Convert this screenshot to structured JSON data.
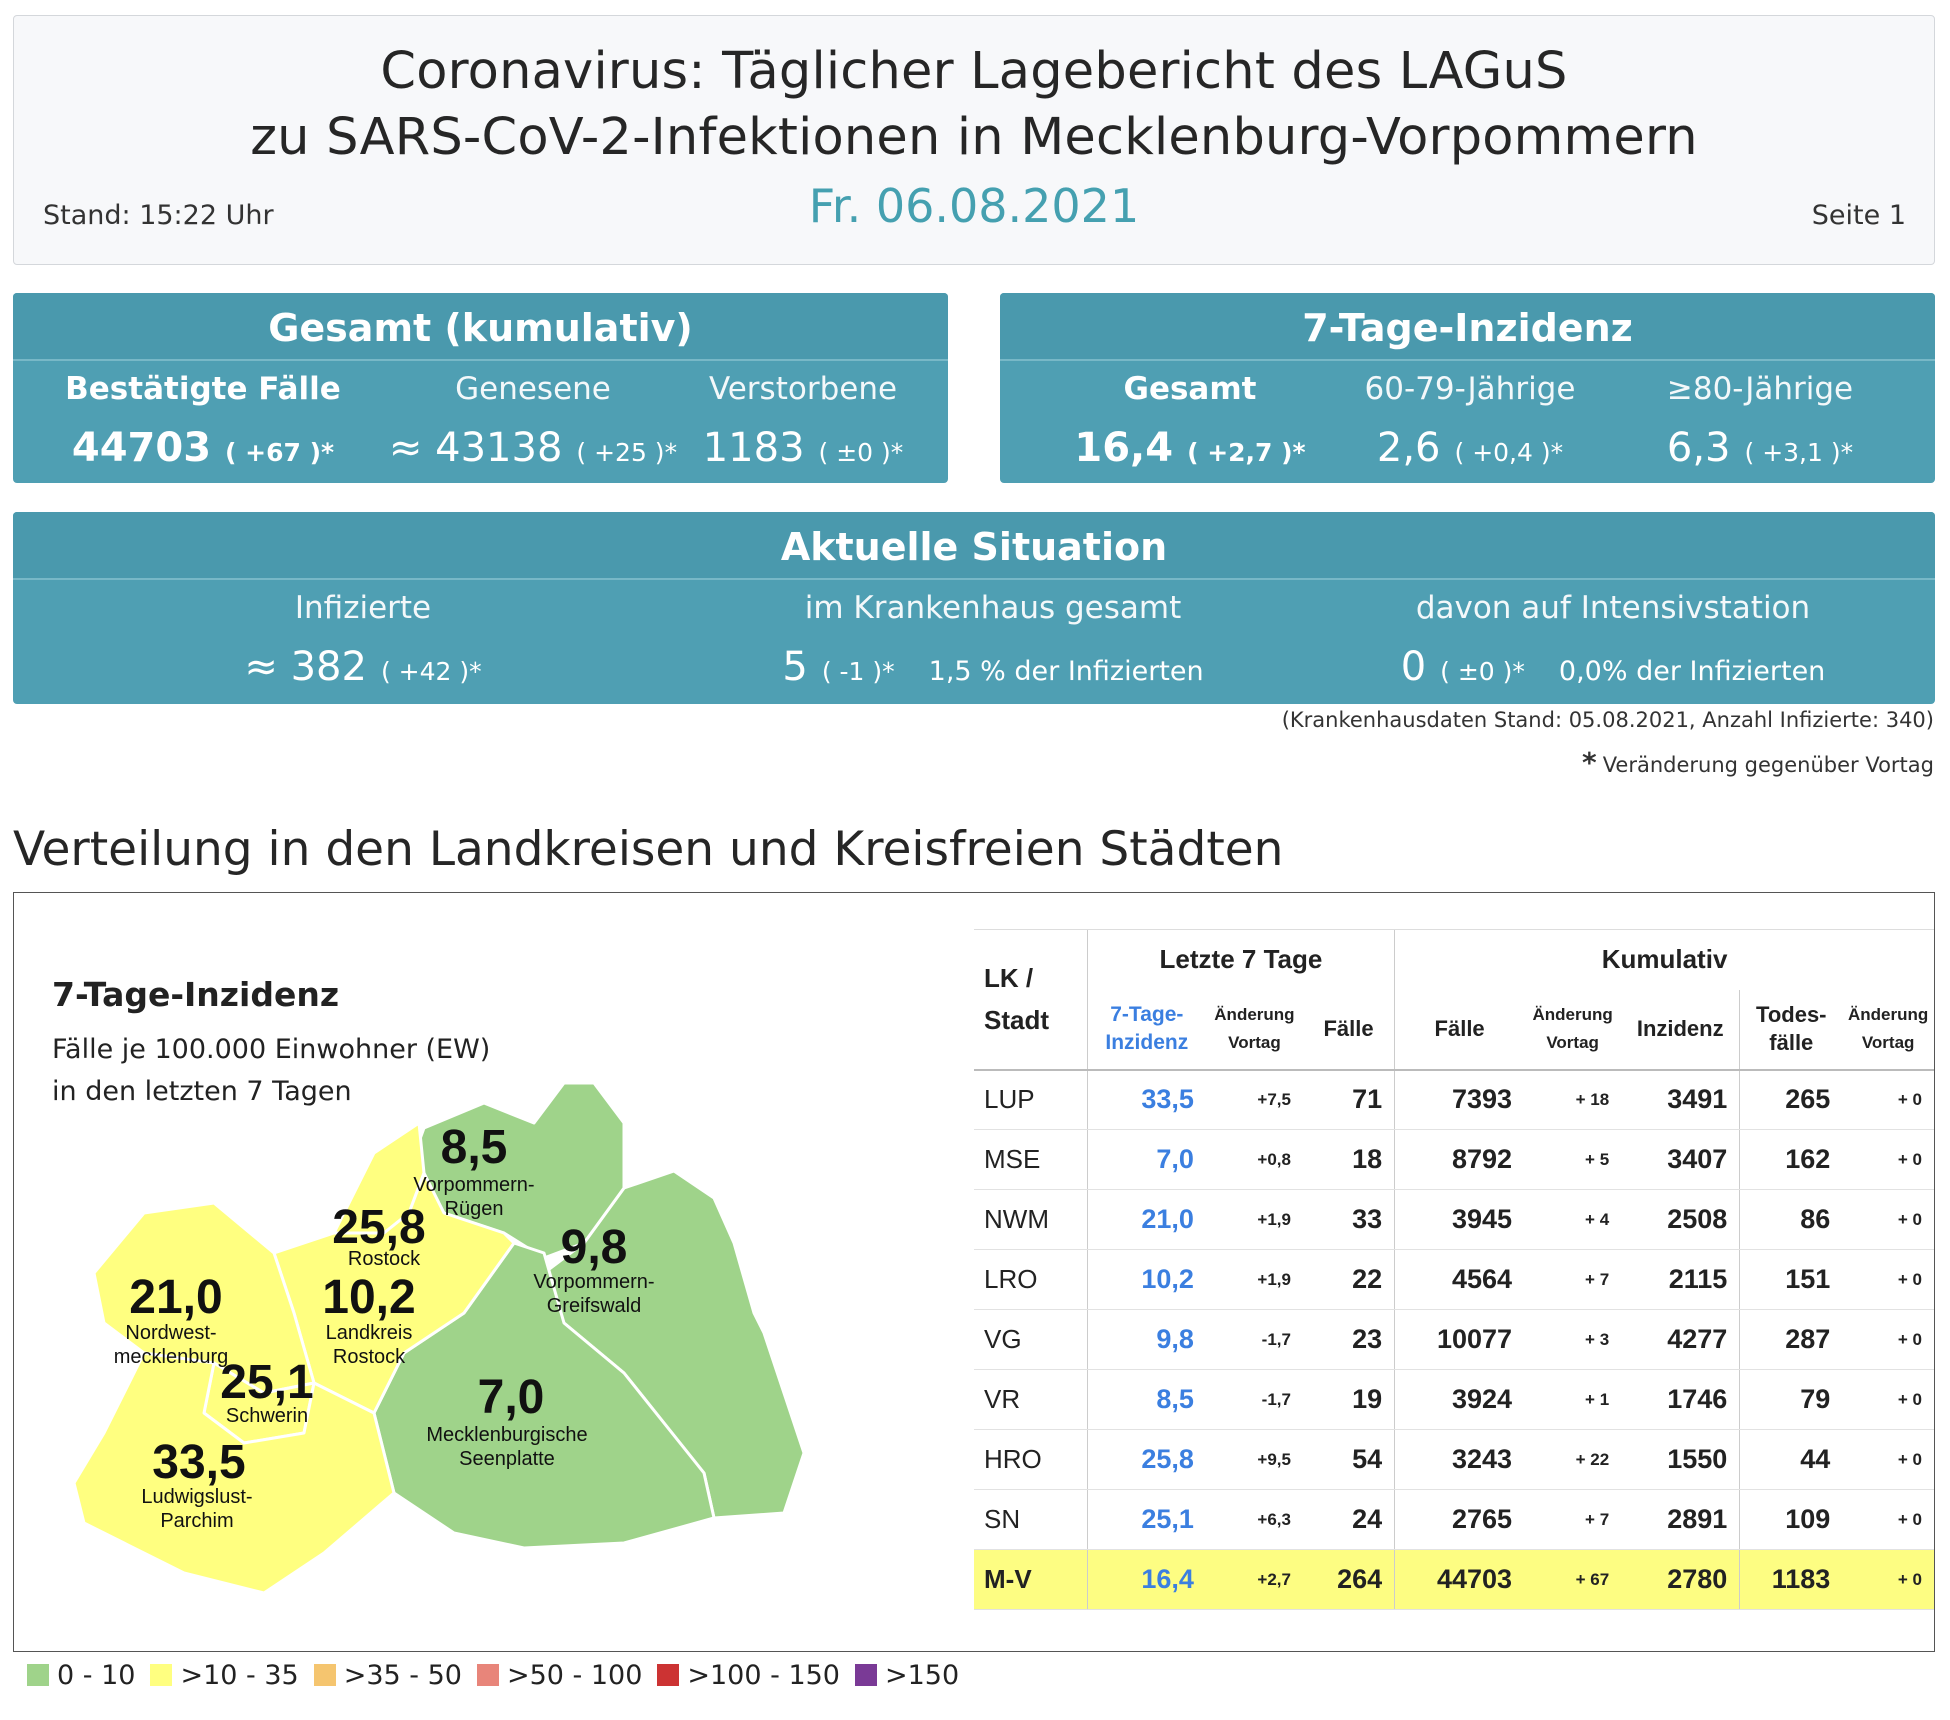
{
  "header": {
    "title_line1": "Coronavirus: Täglicher Lagebericht des LAGuS",
    "title_line2": "zu SARS-CoV-2-Infektionen in Mecklenburg-Vorpommern",
    "stand": "Stand: 15:22 Uhr",
    "date": "Fr. 06.08.2021",
    "page": "Seite 1"
  },
  "gesamt": {
    "title": "Gesamt (kumulativ)",
    "cols": [
      {
        "label": "Bestätigte Fälle",
        "value": "44703",
        "change": "( +67 )*"
      },
      {
        "label": "Genesene",
        "value": "≈ 43138",
        "change": "( +25 )*"
      },
      {
        "label": "Verstorbene",
        "value": "1183",
        "change": "( ±0 )*"
      }
    ]
  },
  "inzidenz": {
    "title": "7-Tage-Inzidenz",
    "cols": [
      {
        "label": "Gesamt",
        "value": "16,4",
        "change": "( +2,7 )*"
      },
      {
        "label": "60-79-Jährige",
        "value": "2,6",
        "change": "( +0,4 )*"
      },
      {
        "label": "≥80-Jährige",
        "value": "6,3",
        "change": "( +3,1 )*"
      }
    ]
  },
  "aktuell": {
    "title": "Aktuelle Situation",
    "cols": [
      {
        "label": "Infizierte",
        "value": "≈ 382",
        "change": "( +42 )*",
        "extra": ""
      },
      {
        "label": "im Krankenhaus gesamt",
        "value": "5",
        "change": "( -1 )*",
        "extra": "1,5 % der Infizierten"
      },
      {
        "label": "davon auf Intensivstation",
        "value": "0",
        "change": "( ±0 )*",
        "extra": "0,0% der Infizierten"
      }
    ]
  },
  "notes": {
    "hospital": "(Krankenhausdaten Stand: 05.08.2021, Anzahl Infizierte: 340)",
    "star": "*",
    "change": "Veränderung gegenüber Vortag"
  },
  "section_title": "Verteilung in den Landkreisen und Kreisfreien Städten",
  "map": {
    "title": "7-Tage-Inzidenz",
    "desc_line1": "Fälle je 100.000 Einwohner (EW)",
    "desc_line2": "in den letzten 7 Tagen",
    "regions": [
      {
        "value": "8,5",
        "name1": "Vorpommern-",
        "name2": "Rügen",
        "color": "#9fd38a"
      },
      {
        "value": "25,8",
        "name1": "Rostock",
        "name2": "",
        "color": "#ffff80"
      },
      {
        "value": "9,8",
        "name1": "Vorpommern-",
        "name2": "Greifswald",
        "color": "#9fd38a"
      },
      {
        "value": "21,0",
        "name1": "Nordwest-",
        "name2": "mecklenburg",
        "color": "#ffff80"
      },
      {
        "value": "10,2",
        "name1": "Landkreis",
        "name2": "Rostock",
        "color": "#ffff80"
      },
      {
        "value": "25,1",
        "name1": "Schwerin",
        "name2": "",
        "color": "#ffff80"
      },
      {
        "value": "7,0",
        "name1": "Mecklenburgische",
        "name2": "Seenplatte",
        "color": "#9fd38a"
      },
      {
        "value": "33,5",
        "name1": "Ludwigslust-",
        "name2": "Parchim",
        "color": "#ffff80"
      }
    ]
  },
  "table": {
    "lk_header1": "LK /",
    "lk_header2": "Stadt",
    "group1": "Letzte 7 Tage",
    "group2": "Kumulativ",
    "h_inz1": "7-Tage-",
    "h_inz2": "Inzidenz",
    "h_aend1": "Änderung",
    "h_aend2": "Vortag",
    "h_faelle": "Fälle",
    "h_kfaelle": "Fälle",
    "h_kaend1": "Änderung",
    "h_kaend2": "Vortag",
    "h_kinz": "Inzidenz",
    "h_tod1": "Todes-",
    "h_tod2": "fälle",
    "h_taend1": "Änderung",
    "h_taend2": "Vortag",
    "rows": [
      {
        "lk": "LUP",
        "inz": "33,5",
        "aend": "+7,5",
        "faelle": "71",
        "kfaelle": "7393",
        "kaend": "+ 18",
        "kinz": "3491",
        "tod": "265",
        "taend": "+ 0"
      },
      {
        "lk": "MSE",
        "inz": "7,0",
        "aend": "+0,8",
        "faelle": "18",
        "kfaelle": "8792",
        "kaend": "+ 5",
        "kinz": "3407",
        "tod": "162",
        "taend": "+ 0"
      },
      {
        "lk": "NWM",
        "inz": "21,0",
        "aend": "+1,9",
        "faelle": "33",
        "kfaelle": "3945",
        "kaend": "+ 4",
        "kinz": "2508",
        "tod": "86",
        "taend": "+ 0"
      },
      {
        "lk": "LRO",
        "inz": "10,2",
        "aend": "+1,9",
        "faelle": "22",
        "kfaelle": "4564",
        "kaend": "+ 7",
        "kinz": "2115",
        "tod": "151",
        "taend": "+ 0"
      },
      {
        "lk": "VG",
        "inz": "9,8",
        "aend": "-1,7",
        "faelle": "23",
        "kfaelle": "10077",
        "kaend": "+ 3",
        "kinz": "4277",
        "tod": "287",
        "taend": "+ 0"
      },
      {
        "lk": "VR",
        "inz": "8,5",
        "aend": "-1,7",
        "faelle": "19",
        "kfaelle": "3924",
        "kaend": "+ 1",
        "kinz": "1746",
        "tod": "79",
        "taend": "+ 0"
      },
      {
        "lk": "HRO",
        "inz": "25,8",
        "aend": "+9,5",
        "faelle": "54",
        "kfaelle": "3243",
        "kaend": "+ 22",
        "kinz": "1550",
        "tod": "44",
        "taend": "+ 0"
      },
      {
        "lk": "SN",
        "inz": "25,1",
        "aend": "+6,3",
        "faelle": "24",
        "kfaelle": "2765",
        "kaend": "+ 7",
        "kinz": "2891",
        "tod": "109",
        "taend": "+ 0"
      },
      {
        "lk": "M-V",
        "inz": "16,4",
        "aend": "+2,7",
        "faelle": "264",
        "kfaelle": "44703",
        "kaend": "+ 67",
        "kinz": "2780",
        "tod": "1183",
        "taend": "+ 0"
      }
    ]
  },
  "legend": [
    {
      "label": "0 - 10",
      "color": "#9fd38a"
    },
    {
      "label": ">10 - 35",
      "color": "#ffff80"
    },
    {
      "label": ">35 - 50",
      "color": "#f5c56f"
    },
    {
      "label": ">50 - 100",
      "color": "#e8857a"
    },
    {
      "label": ">100 - 150",
      "color": "#cc3333"
    },
    {
      "label": ">150",
      "color": "#7a3a96"
    }
  ]
}
